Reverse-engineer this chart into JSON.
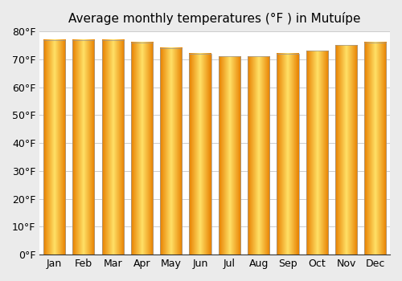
{
  "title": "Average monthly temperatures (°F ) in Mutuípe",
  "months": [
    "Jan",
    "Feb",
    "Mar",
    "Apr",
    "May",
    "Jun",
    "Jul",
    "Aug",
    "Sep",
    "Oct",
    "Nov",
    "Dec"
  ],
  "values": [
    77,
    77,
    77,
    76,
    74,
    72,
    71,
    71,
    72,
    73,
    75,
    76
  ],
  "bar_color_main": "#FFA500",
  "bar_color_light": "#FFD700",
  "bar_edge_color": "#999999",
  "background_color": "#ebebeb",
  "plot_bg_color": "#ffffff",
  "ylim": [
    0,
    80
  ],
  "yticks": [
    0,
    10,
    20,
    30,
    40,
    50,
    60,
    70,
    80
  ],
  "ytick_labels": [
    "0°F",
    "10°F",
    "20°F",
    "30°F",
    "40°F",
    "50°F",
    "60°F",
    "70°F",
    "80°F"
  ],
  "title_fontsize": 11,
  "tick_fontsize": 9
}
